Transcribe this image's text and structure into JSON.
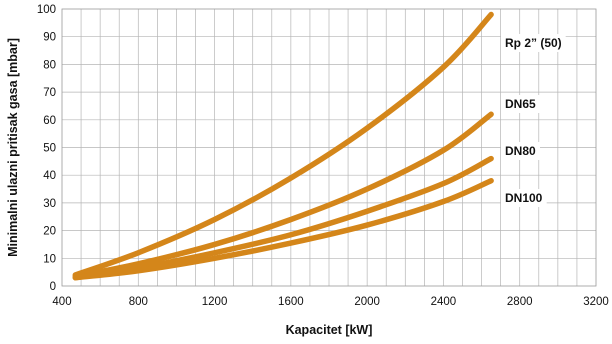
{
  "chart_data": {
    "type": "line",
    "xlabel": "Kapacitet [kW]",
    "ylabel": "Minimalni ulazni pritisak gasa [mbar]",
    "xlim": [
      400,
      3200
    ],
    "ylim": [
      0,
      100
    ],
    "xticks": [
      400,
      800,
      1200,
      1600,
      2000,
      2400,
      2800,
      3200
    ],
    "yticks": [
      0,
      10,
      20,
      30,
      40,
      50,
      60,
      70,
      80,
      90,
      100
    ],
    "grid": true,
    "line_color": "#d4861a",
    "series": [
      {
        "name": "Rp 2” (50)",
        "x": [
          470,
          800,
          1200,
          1600,
          2000,
          2400,
          2650
        ],
        "y": [
          4,
          12,
          24,
          39,
          57,
          79,
          98
        ]
      },
      {
        "name": "DN65",
        "x": [
          470,
          800,
          1200,
          1600,
          2000,
          2400,
          2650
        ],
        "y": [
          3.5,
          8,
          15,
          24,
          35,
          49,
          62
        ]
      },
      {
        "name": "DN80",
        "x": [
          470,
          800,
          1200,
          1600,
          2000,
          2400,
          2650
        ],
        "y": [
          3,
          6.5,
          12,
          18.5,
          27,
          37,
          46
        ]
      },
      {
        "name": "DN100",
        "x": [
          470,
          800,
          1200,
          1600,
          2000,
          2400,
          2650
        ],
        "y": [
          3,
          5.5,
          10,
          15.5,
          22,
          30.5,
          38
        ]
      }
    ]
  }
}
